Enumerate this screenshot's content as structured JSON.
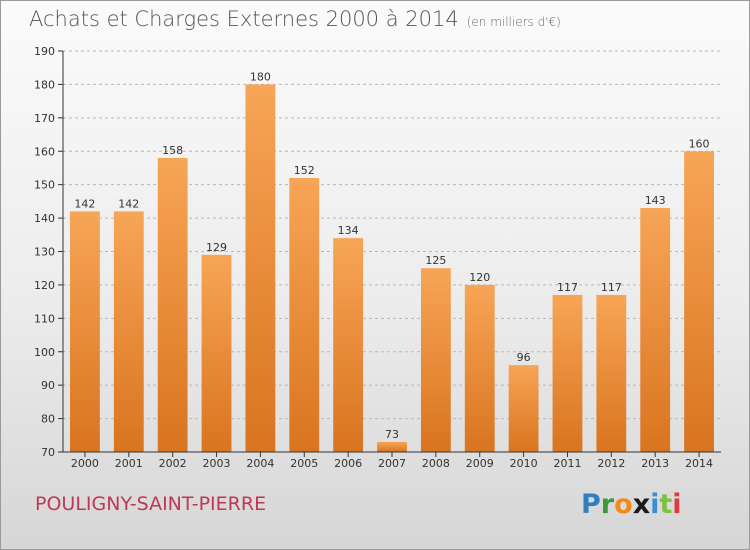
{
  "header": {
    "title": "Achats et Charges Externes 2000 à 2014",
    "subtitle": "(en milliers d'€)"
  },
  "footer": {
    "place": "POULIGNY-SAINT-PIERRE",
    "logo_letters": [
      "P",
      "r",
      "o",
      "x",
      "i",
      "t",
      "i"
    ],
    "logo_colors": [
      "#2f7fc1",
      "#3a9a3a",
      "#f28a1b",
      "#1a1a1a",
      "#3b8fd1",
      "#7cc242",
      "#e23a3a"
    ]
  },
  "colors": {
    "bar_top": "#f7a556",
    "bar_bottom": "#d9741f",
    "axis": "#333333",
    "grid": "#b8b8b8"
  },
  "chart_data": {
    "type": "bar",
    "title": "Achats et Charges Externes 2000 à 2014",
    "subtitle": "(en milliers d'€)",
    "categories": [
      "2000",
      "2001",
      "2002",
      "2003",
      "2004",
      "2005",
      "2006",
      "2007",
      "2008",
      "2009",
      "2010",
      "2011",
      "2012",
      "2013",
      "2014"
    ],
    "values": [
      142,
      142,
      158,
      129,
      180,
      152,
      134,
      73,
      125,
      120,
      96,
      117,
      117,
      143,
      160
    ],
    "ylim": [
      70,
      190
    ],
    "yticks": [
      70,
      80,
      90,
      100,
      110,
      120,
      130,
      140,
      150,
      160,
      170,
      180,
      190
    ],
    "xlabel": "",
    "ylabel": "",
    "grid": true
  }
}
